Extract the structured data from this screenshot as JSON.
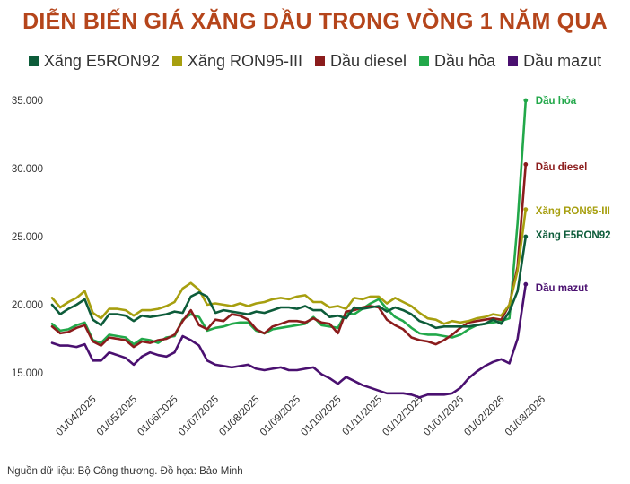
{
  "chart_data": {
    "type": "line",
    "title": "DIỄN BIẾN GIÁ XĂNG DẦU TRONG VÒNG 1 NĂM QUA",
    "source": "Nguồn dữ liệu: Bộ Công thương. Đồ họa: Bảo Minh",
    "xlabel": "",
    "ylabel": "",
    "ylim": [
      12500,
      35500
    ],
    "yticks": [
      15000,
      20000,
      25000,
      30000,
      35000
    ],
    "ytick_labels": [
      "15.000",
      "20.000",
      "25.000",
      "30.000",
      "35.000"
    ],
    "xticks": [
      5,
      10,
      15,
      20,
      25,
      30,
      35,
      40,
      45,
      50,
      55,
      60
    ],
    "xtick_labels": [
      "01/04/2025",
      "01/05/2025",
      "01/06/2025",
      "01/07/2025",
      "01/08/2025",
      "01/09/2025",
      "01/10/2025",
      "01/11/2025",
      "01/12/2025",
      "01/01/2026",
      "01/02/2026",
      "01/03/2026"
    ],
    "grid": false,
    "legend_position": "top",
    "series": [
      {
        "name": "Xăng E5RON92",
        "color": "#0d5c3a",
        "end_label": "Xăng E5RON92",
        "values": [
          20000,
          19300,
          19700,
          20000,
          20400,
          18900,
          18500,
          19300,
          19300,
          19200,
          18800,
          19200,
          19100,
          19200,
          19300,
          19500,
          19400,
          20600,
          20900,
          20600,
          19400,
          19600,
          19500,
          19400,
          19300,
          19500,
          19400,
          19600,
          19800,
          19800,
          19700,
          19900,
          19600,
          19600,
          19100,
          19200,
          19000,
          19800,
          19700,
          19800,
          19900,
          19500,
          19800,
          19600,
          19300,
          18800,
          18600,
          18300,
          18400,
          18400,
          18400,
          18400,
          18500,
          18600,
          18900,
          18600,
          19500,
          21000,
          25000
        ]
      },
      {
        "name": "Xăng RON95-III",
        "color": "#a79f0f",
        "end_label": "Xăng RON95-III",
        "values": [
          20500,
          19800,
          20200,
          20500,
          21000,
          19400,
          19000,
          19700,
          19700,
          19600,
          19200,
          19600,
          19600,
          19700,
          19900,
          20200,
          21200,
          21600,
          21100,
          20000,
          20100,
          20000,
          19900,
          20100,
          19900,
          20100,
          20200,
          20400,
          20500,
          20400,
          20600,
          20700,
          20200,
          20200,
          19800,
          19900,
          19700,
          20500,
          20400,
          20600,
          20600,
          20100,
          20500,
          20200,
          19900,
          19400,
          19000,
          18900,
          18600,
          18800,
          18700,
          18800,
          19000,
          19100,
          19300,
          19200,
          20000,
          22500,
          27000
        ]
      },
      {
        "name": "Dầu diesel",
        "color": "#8b1c1c",
        "end_label": "Dầu diesel",
        "values": [
          18400,
          17900,
          18000,
          18300,
          18500,
          17300,
          17000,
          17600,
          17500,
          17400,
          16900,
          17300,
          17200,
          17400,
          17500,
          17800,
          18800,
          19600,
          18500,
          18200,
          18900,
          18800,
          19300,
          19200,
          18900,
          18200,
          17900,
          18400,
          18600,
          18800,
          18800,
          18700,
          19000,
          18700,
          18600,
          17900,
          19500,
          19600,
          19800,
          19900,
          19800,
          18900,
          18500,
          18200,
          17600,
          17400,
          17300,
          17100,
          17400,
          17800,
          18300,
          18700,
          18800,
          18900,
          19000,
          18900,
          20000,
          22800,
          30300
        ]
      },
      {
        "name": "Dầu hỏa",
        "color": "#22a84a",
        "end_label": "Dầu hỏa",
        "values": [
          18600,
          18100,
          18200,
          18500,
          18700,
          17400,
          17200,
          17800,
          17700,
          17600,
          17100,
          17500,
          17400,
          17200,
          17600,
          17700,
          18900,
          19300,
          19100,
          18100,
          18300,
          18400,
          18600,
          18700,
          18700,
          18100,
          17900,
          18200,
          18300,
          18400,
          18500,
          18600,
          19100,
          18500,
          18400,
          18300,
          19400,
          19300,
          19700,
          20100,
          20400,
          19700,
          19100,
          18800,
          18300,
          17900,
          17800,
          17800,
          17700,
          17600,
          17800,
          18200,
          18500,
          18600,
          18700,
          18800,
          19000,
          26000,
          35000
        ]
      },
      {
        "name": "Dầu mazut",
        "color": "#4a1070",
        "end_label": "Dầu mazut",
        "values": [
          17200,
          17000,
          17000,
          16900,
          17100,
          15900,
          15900,
          16500,
          16300,
          16100,
          15600,
          16200,
          16500,
          16300,
          16200,
          16500,
          17700,
          17400,
          17000,
          15900,
          15600,
          15500,
          15400,
          15500,
          15600,
          15300,
          15200,
          15300,
          15400,
          15200,
          15200,
          15300,
          15400,
          14900,
          14600,
          14200,
          14700,
          14400,
          14100,
          13900,
          13700,
          13500,
          13500,
          13500,
          13400,
          13200,
          13400,
          13400,
          13400,
          13500,
          13900,
          14600,
          15100,
          15500,
          15800,
          16000,
          15700,
          17500,
          21500
        ]
      }
    ]
  }
}
